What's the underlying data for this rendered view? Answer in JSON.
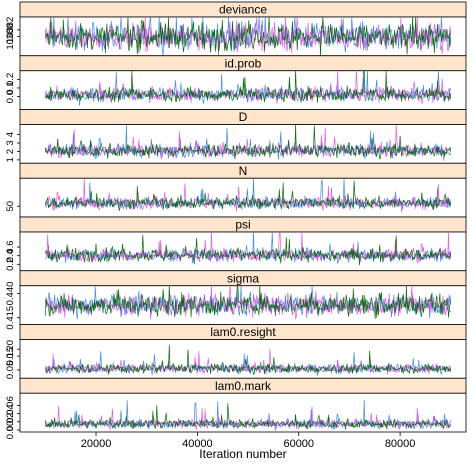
{
  "chart_data": {
    "type": "line",
    "title": "",
    "xlabel": "Iteration number",
    "x_range": [
      10000,
      90000
    ],
    "xlim": [
      5000,
      93000
    ],
    "x_ticks": [
      20000,
      40000,
      60000,
      80000
    ],
    "x_tick_labels": [
      "20000",
      "40000",
      "60000",
      "80000"
    ],
    "chains": [
      {
        "name": "",
        "color": "#1f77e8"
      },
      {
        "name": "",
        "color": "#e040e0"
      },
      {
        "name": "",
        "color": "#006400"
      }
    ],
    "panels": [
      {
        "name": "deviance",
        "ylim": [
          10374,
          10386
        ],
        "y_ticks": [
          10380,
          10382
        ],
        "y_tick_labels": [
          "10380",
          "10382"
        ],
        "band": [
          10376,
          10383.5
        ],
        "spike": 0.6
      },
      {
        "name": "id.prob",
        "ylim": [
          -0.15,
          0.3
        ],
        "y_ticks": [
          0.0,
          0.1,
          0.2
        ],
        "y_tick_labels": [
          "0.0",
          "0.1",
          "0.2"
        ],
        "band": [
          -0.05,
          0.1
        ],
        "spike": 1.3
      },
      {
        "name": "D",
        "ylim": [
          0.6,
          5.2
        ],
        "y_ticks": [
          1,
          2,
          3,
          4
        ],
        "y_tick_labels": [
          "1",
          "2",
          "3",
          "4"
        ],
        "band": [
          1.4,
          2.8
        ],
        "spike": 1.4
      },
      {
        "name": "N",
        "ylim": [
          25,
          115
        ],
        "y_ticks": [
          50
        ],
        "y_tick_labels": [
          "50"
        ],
        "band": [
          45,
          70
        ],
        "spike": 1.3
      },
      {
        "name": "psi",
        "ylim": [
          0.05,
          0.95
        ],
        "y_ticks": [
          0.2,
          0.4,
          0.6
        ],
        "y_tick_labels": [
          "0.2",
          "0.4",
          "0.6"
        ],
        "band": [
          0.28,
          0.55
        ],
        "spike": 1.2
      },
      {
        "name": "sigma",
        "ylim": [
          0.408,
          0.448
        ],
        "y_ticks": [
          0.415,
          0.44
        ],
        "y_tick_labels": [
          "0.415",
          "0.440"
        ],
        "band": [
          0.418,
          0.438
        ],
        "spike": 0.4
      },
      {
        "name": "lam0.resight",
        "ylim": [
          -0.01,
          0.27
        ],
        "y_ticks": [
          0.05,
          0.15,
          0.2
        ],
        "y_tick_labels": [
          "0.05",
          "0.15",
          "0.20"
        ],
        "band": [
          0.03,
          0.09
        ],
        "spike": 1.6
      },
      {
        "name": "lam0.mark",
        "ylim": [
          -0.005,
          0.09
        ],
        "y_ticks": [
          0.0,
          0.02,
          0.04,
          0.06
        ],
        "y_tick_labels": [
          "0.00",
          "0.02",
          "0.04",
          "0.06"
        ],
        "band": [
          0.005,
          0.025
        ],
        "spike": 1.8
      }
    ]
  }
}
